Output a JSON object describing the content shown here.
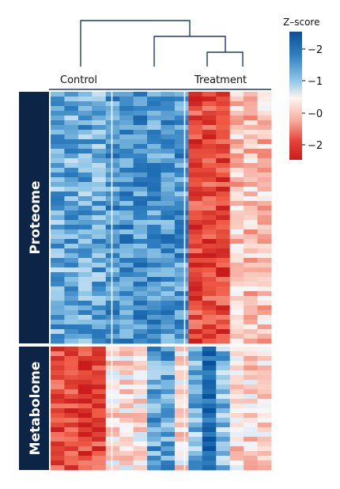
{
  "chart_data": {
    "type": "heatmap",
    "title": "",
    "groups": [
      {
        "label": "Control",
        "columns": 4
      },
      {
        "label": "",
        "columns": 6
      },
      {
        "label": "Treatment",
        "columns": 6
      }
    ],
    "row_blocks": [
      {
        "label": "Proteome",
        "rows": 53
      },
      {
        "label": "Metabolome",
        "rows": 26
      }
    ],
    "legend": {
      "title": "Z–score",
      "ticks": [
        "−2",
        "−1",
        "−0",
        "−2"
      ],
      "placement": "right",
      "colors": [
        "#0b4f97",
        "#2f7fc0",
        "#8ec6e6",
        "#fff5f0",
        "#f5a99b",
        "#e8433a",
        "#c81d1c"
      ]
    },
    "block_means": [
      [
        -1.1,
        -1.4,
        1.9,
        0.6
      ],
      [
        1.9,
        0.3,
        -0.9,
        0.4
      ]
    ],
    "palette": {
      "neg_strong": "#08519c",
      "neg_mid": "#4292c6",
      "neg_light": "#c6dbef",
      "neutral": "#f7f7f7",
      "pos_light": "#fcbba1",
      "pos_mid": "#ef3b2c",
      "pos_strong": "#c81d1c",
      "panel": "#0c2445",
      "dendrogram": "#1f3b66"
    }
  }
}
